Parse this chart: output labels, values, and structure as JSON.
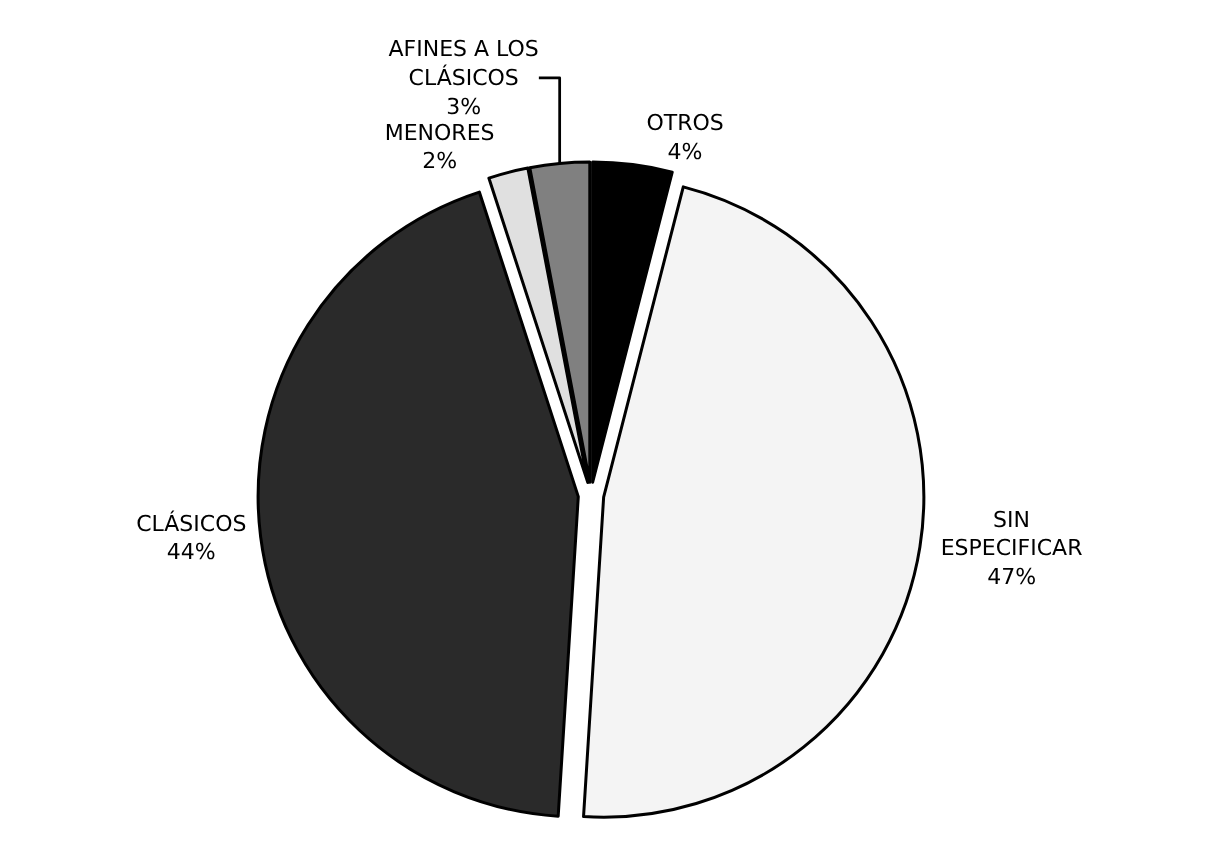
{
  "chart_data": {
    "type": "pie",
    "categories": [
      "OTROS",
      "SIN ESPECIFICAR",
      "CLÁSICOS",
      "MENORES",
      "AFINES A LOS CLÁSICOS"
    ],
    "values": [
      4,
      47,
      44,
      2,
      3
    ],
    "value_labels": [
      "4%",
      "47%",
      "44%",
      "2%",
      "3%"
    ],
    "colors": [
      "#000000",
      "#f4f4f4",
      "#2a2a2a",
      "#e0e0e0",
      "#808080"
    ],
    "legend": false
  }
}
